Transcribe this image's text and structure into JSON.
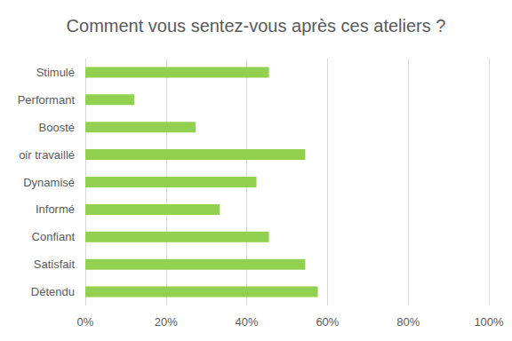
{
  "chart_data": {
    "type": "bar",
    "orientation": "horizontal",
    "title": "Comment vous sentez-vous après ces ateliers ?",
    "categories": [
      "Stimulé",
      "Performant",
      "Boosté",
      "oir travaillé",
      "Dynamisé",
      "Informé",
      "Confiant",
      "Satisfait",
      "Détendu"
    ],
    "values": [
      45.5,
      12.1,
      27.3,
      54.5,
      42.4,
      33.3,
      45.5,
      54.5,
      57.6
    ],
    "color": "#92d050",
    "xlim": [
      0,
      100
    ],
    "xticks": [
      {
        "value": 0,
        "label": "0%"
      },
      {
        "value": 20,
        "label": "20%"
      },
      {
        "value": 40,
        "label": "40%"
      },
      {
        "value": 60,
        "label": "60%"
      },
      {
        "value": 80,
        "label": "80%"
      },
      {
        "value": 100,
        "label": "100%"
      }
    ],
    "grid": true
  }
}
